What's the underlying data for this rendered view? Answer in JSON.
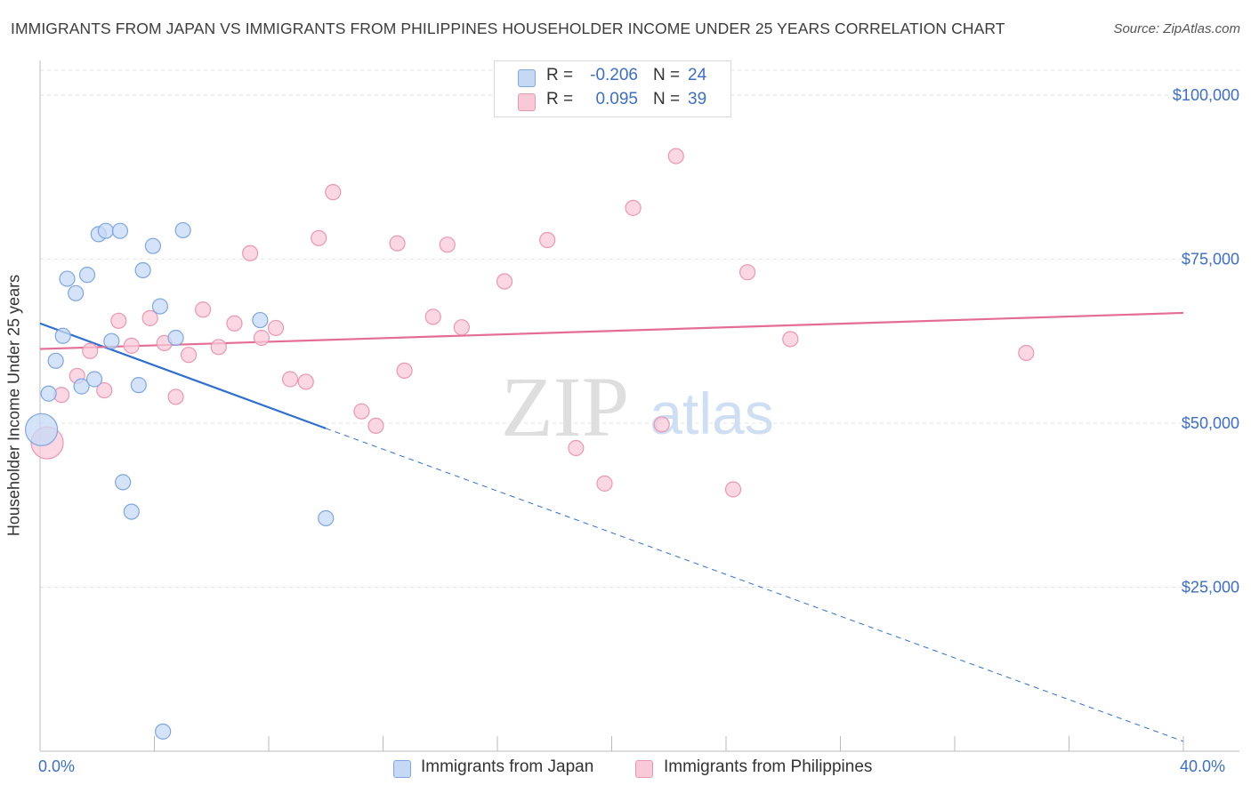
{
  "header": {
    "title": "IMMIGRANTS FROM JAPAN VS IMMIGRANTS FROM PHILIPPINES HOUSEHOLDER INCOME UNDER 25 YEARS CORRELATION CHART",
    "source": "Source: ZipAtlas.com"
  },
  "watermark": {
    "zip": "ZIP",
    "atlas": "atlas"
  },
  "legend": {
    "japan": {
      "r_label": "R =",
      "r_value": "-0.206",
      "n_label": "N =",
      "n_value": "24"
    },
    "philippines": {
      "r_label": "R =",
      "r_value": "0.095",
      "n_label": "N =",
      "n_value": "39"
    }
  },
  "colors": {
    "japan_fill": "#c5d9f5",
    "japan_stroke": "#7ea6e0",
    "japan_line": "#2e6fd0",
    "philippines_fill": "#f8cad8",
    "philippines_stroke": "#ea97b3",
    "philippines_line": "#e46d96",
    "axis_text": "#3d6fc6"
  },
  "chart_data": {
    "type": "scatter",
    "title": "IMMIGRANTS FROM JAPAN VS IMMIGRANTS FROM PHILIPPINES HOUSEHOLDER INCOME UNDER 25 YEARS CORRELATION CHART",
    "xlabel": "",
    "ylabel": "Householder Income Under 25 years",
    "xlim": [
      0,
      40
    ],
    "ylim": [
      0,
      105000
    ],
    "x_tick_labels": {
      "left": "0.0%",
      "right": "40.0%"
    },
    "y_ticks": [
      {
        "value": 25000,
        "label": "$25,000"
      },
      {
        "value": 50000,
        "label": "$50,000"
      },
      {
        "value": 75000,
        "label": "$75,000"
      },
      {
        "value": 100000,
        "label": "$100,000"
      }
    ],
    "series": [
      {
        "name": "Immigrants from Japan",
        "points": [
          {
            "x": 0.05,
            "y": 49000,
            "size": "large"
          },
          {
            "x": 0.3,
            "y": 54500
          },
          {
            "x": 0.55,
            "y": 59500
          },
          {
            "x": 0.8,
            "y": 63300
          },
          {
            "x": 0.95,
            "y": 72000
          },
          {
            "x": 1.25,
            "y": 69800
          },
          {
            "x": 1.45,
            "y": 55600
          },
          {
            "x": 1.65,
            "y": 72600
          },
          {
            "x": 1.9,
            "y": 56700
          },
          {
            "x": 2.05,
            "y": 78800
          },
          {
            "x": 2.3,
            "y": 79300
          },
          {
            "x": 2.5,
            "y": 62500
          },
          {
            "x": 2.8,
            "y": 79300
          },
          {
            "x": 2.9,
            "y": 41000
          },
          {
            "x": 3.2,
            "y": 36500
          },
          {
            "x": 3.45,
            "y": 55800
          },
          {
            "x": 3.6,
            "y": 73300
          },
          {
            "x": 3.95,
            "y": 77000
          },
          {
            "x": 4.2,
            "y": 67800
          },
          {
            "x": 4.3,
            "y": 3000
          },
          {
            "x": 4.75,
            "y": 63000
          },
          {
            "x": 5.0,
            "y": 79400
          },
          {
            "x": 7.7,
            "y": 65700
          },
          {
            "x": 10.0,
            "y": 35500
          }
        ]
      },
      {
        "name": "Immigrants from Philippines",
        "points": [
          {
            "x": 0.25,
            "y": 47000,
            "size": "large"
          },
          {
            "x": 0.75,
            "y": 54300
          },
          {
            "x": 1.3,
            "y": 57200
          },
          {
            "x": 1.75,
            "y": 61000
          },
          {
            "x": 2.25,
            "y": 55000
          },
          {
            "x": 2.75,
            "y": 65600
          },
          {
            "x": 3.2,
            "y": 61800
          },
          {
            "x": 3.85,
            "y": 66000
          },
          {
            "x": 4.35,
            "y": 62200
          },
          {
            "x": 4.75,
            "y": 54000
          },
          {
            "x": 5.2,
            "y": 60400
          },
          {
            "x": 5.7,
            "y": 67300
          },
          {
            "x": 6.25,
            "y": 61600
          },
          {
            "x": 6.8,
            "y": 65200
          },
          {
            "x": 7.35,
            "y": 75900
          },
          {
            "x": 7.75,
            "y": 63000
          },
          {
            "x": 8.25,
            "y": 64500
          },
          {
            "x": 8.75,
            "y": 56700
          },
          {
            "x": 9.3,
            "y": 56300
          },
          {
            "x": 9.75,
            "y": 78200
          },
          {
            "x": 10.25,
            "y": 85200
          },
          {
            "x": 11.25,
            "y": 51800
          },
          {
            "x": 11.75,
            "y": 49600
          },
          {
            "x": 12.5,
            "y": 77400
          },
          {
            "x": 12.75,
            "y": 58000
          },
          {
            "x": 13.75,
            "y": 66200
          },
          {
            "x": 14.25,
            "y": 77200
          },
          {
            "x": 14.75,
            "y": 64600
          },
          {
            "x": 16.25,
            "y": 71600
          },
          {
            "x": 17.75,
            "y": 77900
          },
          {
            "x": 18.75,
            "y": 46200
          },
          {
            "x": 19.75,
            "y": 40800
          },
          {
            "x": 20.75,
            "y": 82800
          },
          {
            "x": 21.75,
            "y": 49800
          },
          {
            "x": 22.25,
            "y": 90700
          },
          {
            "x": 24.25,
            "y": 39900
          },
          {
            "x": 24.75,
            "y": 73000
          },
          {
            "x": 26.25,
            "y": 62800
          },
          {
            "x": 34.5,
            "y": 60700
          }
        ]
      }
    ],
    "trend_lines": [
      {
        "series": "Immigrants from Japan",
        "solid_from": [
          0,
          65200
        ],
        "solid_to": [
          10.0,
          49200
        ],
        "dashed_to": [
          40,
          1500
        ]
      },
      {
        "series": "Immigrants from Philippines",
        "from": [
          0,
          61300
        ],
        "to": [
          40,
          66800
        ]
      }
    ]
  },
  "bottom_legend": {
    "japan_label": "Immigrants from Japan",
    "philippines_label": "Immigrants from Philippines"
  }
}
